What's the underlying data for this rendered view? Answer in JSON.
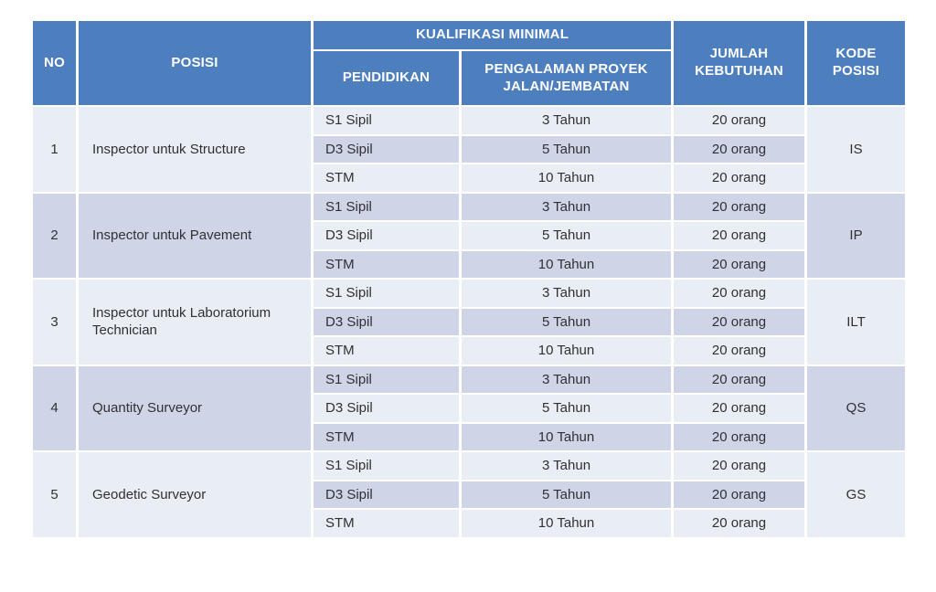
{
  "colors": {
    "header_blue": "#4D7EBE",
    "band_light": "#E9EDF4",
    "band_medium": "#CFD5E6",
    "header_text": "#FFFFFF",
    "body_text": "#303036"
  },
  "table": {
    "headers": {
      "no": "NO",
      "posisi": "POSISI",
      "kualifikasi": "KUALIFIKASI MINIMAL",
      "pendidikan": "PENDIDIKAN",
      "pengalaman": "PENGALAMAN PROYEK JALAN/JEMBATAN",
      "jumlah": "JUMLAH KEBUTUHAN",
      "kode": "KODE POSISI"
    },
    "groups": [
      {
        "no": "1",
        "posisi": "Inspector untuk Structure",
        "kode": "IS",
        "rows": [
          {
            "pendidikan": "S1 Sipil",
            "pengalaman": "3 Tahun",
            "jumlah": "20 orang"
          },
          {
            "pendidikan": "D3 Sipil",
            "pengalaman": "5 Tahun",
            "jumlah": "20 orang"
          },
          {
            "pendidikan": "STM",
            "pengalaman": "10 Tahun",
            "jumlah": "20 orang"
          }
        ]
      },
      {
        "no": "2",
        "posisi": "Inspector untuk Pavement",
        "kode": "IP",
        "rows": [
          {
            "pendidikan": "S1 Sipil",
            "pengalaman": "3 Tahun",
            "jumlah": "20 orang"
          },
          {
            "pendidikan": "D3 Sipil",
            "pengalaman": "5 Tahun",
            "jumlah": "20 orang"
          },
          {
            "pendidikan": "STM",
            "pengalaman": "10 Tahun",
            "jumlah": "20 orang"
          }
        ]
      },
      {
        "no": "3",
        "posisi": "Inspector untuk Laboratorium Technician",
        "kode": "ILT",
        "rows": [
          {
            "pendidikan": "S1 Sipil",
            "pengalaman": "3 Tahun",
            "jumlah": "20 orang"
          },
          {
            "pendidikan": "D3 Sipil",
            "pengalaman": "5 Tahun",
            "jumlah": "20 orang"
          },
          {
            "pendidikan": "STM",
            "pengalaman": "10 Tahun",
            "jumlah": "20 orang"
          }
        ]
      },
      {
        "no": "4",
        "posisi": "Quantity Surveyor",
        "kode": "QS",
        "rows": [
          {
            "pendidikan": "S1 Sipil",
            "pengalaman": "3 Tahun",
            "jumlah": "20 orang"
          },
          {
            "pendidikan": "D3 Sipil",
            "pengalaman": "5 Tahun",
            "jumlah": "20 orang"
          },
          {
            "pendidikan": "STM",
            "pengalaman": "10 Tahun",
            "jumlah": "20 orang"
          }
        ]
      },
      {
        "no": "5",
        "posisi": "Geodetic Surveyor",
        "kode": "GS",
        "rows": [
          {
            "pendidikan": "S1 Sipil",
            "pengalaman": "3 Tahun",
            "jumlah": "20 orang"
          },
          {
            "pendidikan": "D3 Sipil",
            "pengalaman": "5 Tahun",
            "jumlah": "20 orang"
          },
          {
            "pendidikan": "STM",
            "pengalaman": "10 Tahun",
            "jumlah": "20 orang"
          }
        ]
      }
    ]
  }
}
